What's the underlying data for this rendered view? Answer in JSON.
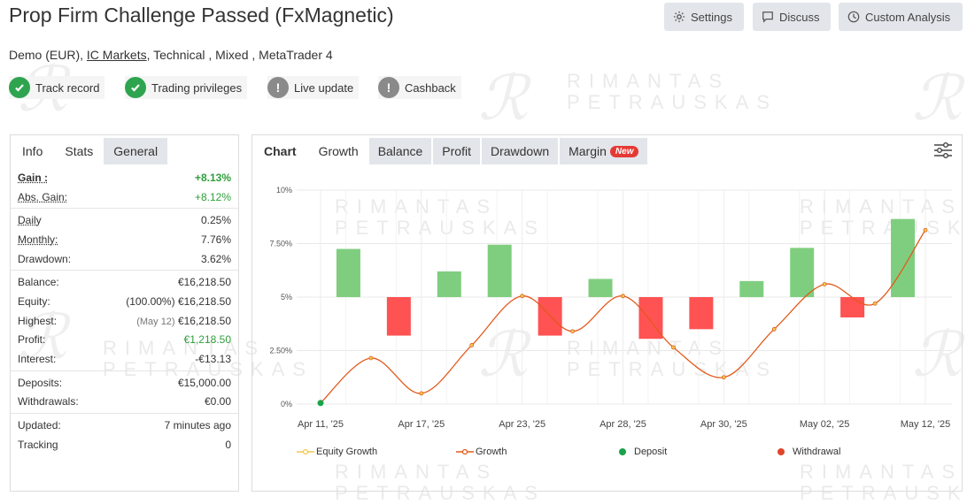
{
  "page": {
    "title": "Prop Firm Challenge Passed (FxMagnetic)",
    "watermark_text_1": "RIMANTAS",
    "watermark_text_2": "PETRAUSKAS"
  },
  "toolbar": {
    "settings_label": "Settings",
    "discuss_label": "Discuss",
    "custom_analysis_label": "Custom Analysis"
  },
  "meta": {
    "prefix": "Demo (EUR),",
    "broker": "IC Markets",
    "suffix": ", Technical , Mixed , MetaTrader 4"
  },
  "badges": [
    {
      "label": "Track record",
      "status": "ok"
    },
    {
      "label": "Trading privileges",
      "status": "ok"
    },
    {
      "label": "Live update",
      "status": "warn"
    },
    {
      "label": "Cashback",
      "status": "warn"
    }
  ],
  "colors": {
    "ok": "#2ea44f",
    "warn": "#8a8a8a",
    "gain_green": "#2e9e3a",
    "bar_pos": "#7fce7f",
    "bar_neg": "#ff5252",
    "growth_line": "#e25a1c",
    "deposit": "#1aa34a",
    "withdrawal": "#e0452a",
    "equity": "#f2c94c"
  },
  "left_tabs": [
    "Info",
    "Stats",
    "General"
  ],
  "stats": {
    "gain": {
      "label": "Gain :",
      "value": "+8.13%"
    },
    "abs_gain": {
      "label": "Abs. Gain:",
      "value": "+8.12%"
    },
    "daily": {
      "label": "Daily",
      "value": "0.25%"
    },
    "monthly": {
      "label": "Monthly:",
      "value": "7.76%"
    },
    "drawdown": {
      "label": "Drawdown:",
      "value": "3.62%"
    },
    "balance": {
      "label": "Balance:",
      "value": "€16,218.50"
    },
    "equity": {
      "label": "Equity:",
      "extra": "(100.00%)",
      "value": "€16,218.50"
    },
    "highest": {
      "label": "Highest:",
      "extra": "(May 12)",
      "value": "€16,218.50"
    },
    "profit": {
      "label": "Profit:",
      "value": "€1,218.50"
    },
    "interest": {
      "label": "Interest:",
      "value": "-€13.13"
    },
    "deposits": {
      "label": "Deposits:",
      "value": "€15,000.00"
    },
    "withdrawals": {
      "label": "Withdrawals:",
      "value": "€0.00"
    },
    "updated": {
      "label": "Updated:",
      "value": "7 minutes ago"
    },
    "tracking": {
      "label": "Tracking",
      "value": "0"
    }
  },
  "chart_tabs": [
    "Chart",
    "Growth",
    "Balance",
    "Profit",
    "Drawdown",
    "Margin"
  ],
  "chart_new_badge": "New",
  "chart_data": {
    "type": "bar",
    "x_ticks": [
      "Apr 11, '25",
      "Apr 17, '25",
      "Apr 23, '25",
      "Apr 28, '25",
      "Apr 30, '25",
      "May 02, '25",
      "May 12, '25"
    ],
    "y_ticks": [
      "0%",
      "2.50%",
      "5%",
      "7.50%",
      "10%"
    ],
    "ylim": [
      0,
      10
    ],
    "bar_base": 5,
    "bars": [
      2.25,
      -1.8,
      1.2,
      2.45,
      -1.8,
      0.85,
      -1.95,
      -1.5,
      0.75,
      2.3,
      -0.95,
      3.65
    ],
    "growth": [
      0.05,
      2.15,
      0.5,
      2.75,
      5.05,
      3.4,
      5.05,
      2.65,
      1.25,
      3.5,
      5.6,
      4.7,
      8.13
    ],
    "equity_growth": [
      0.05,
      2.15,
      0.5,
      2.75,
      5.05,
      3.4,
      5.05,
      2.65,
      1.25,
      3.5,
      5.6,
      4.7,
      8.13
    ],
    "deposit_points": [
      [
        0,
        0.05
      ]
    ],
    "legend": [
      "Equity Growth",
      "Growth",
      "Deposit",
      "Withdrawal"
    ]
  }
}
